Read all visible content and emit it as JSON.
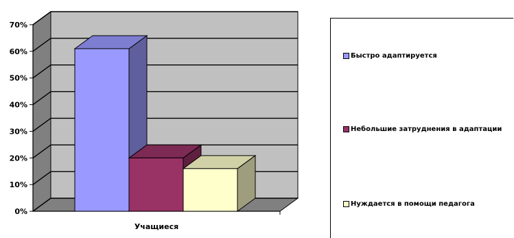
{
  "chart_data": {
    "type": "bar",
    "categories": [
      "Учащиеся"
    ],
    "series": [
      {
        "name": "Быстро адаптируется",
        "values": [
          61
        ],
        "color": "#9999FF"
      },
      {
        "name": "Небольшие затруднения в адаптации",
        "values": [
          20
        ],
        "color": "#993366"
      },
      {
        "name": "Нуждается в помощи педагога",
        "values": [
          16
        ],
        "color": "#FFFFCC"
      }
    ],
    "ylim": [
      0,
      70
    ],
    "yticks": [
      "0%",
      "10%",
      "20%",
      "30%",
      "40%",
      "50%",
      "60%",
      "70%"
    ],
    "grid": true,
    "three_d": true,
    "legend_position": "right"
  }
}
